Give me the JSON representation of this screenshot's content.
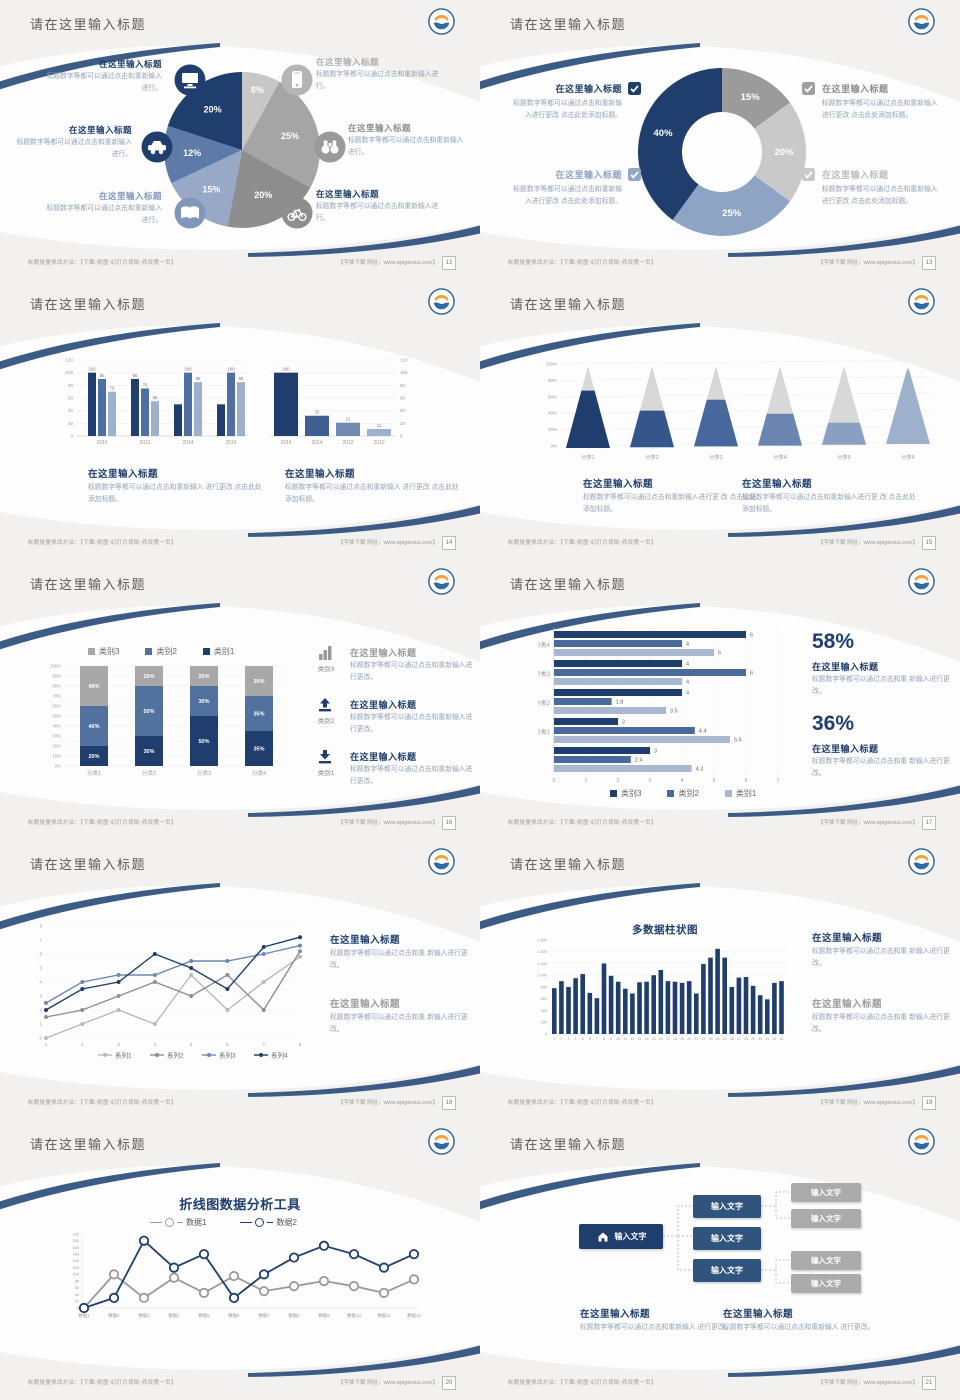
{
  "common": {
    "slide_title": "请在这里输入标题",
    "block_title": "在这里输入标题",
    "footer_left": "标题批量修改方法：【下载-视图-幻灯片母版-修改第一页】",
    "footer_right": "【字体下载 网址：www.pptgenius.com】",
    "colors": {
      "navy": "#1f3e6d",
      "mid_blue": "#41639b",
      "steel": "#51719f",
      "light_steel": "#9db0cc",
      "gray_dark": "#8e8e8e",
      "gray_mid": "#a5a5a5",
      "gray_light": "#c9c9c9",
      "body_text": "#93a2b5",
      "title_gray": "#5a5a5a",
      "stripe_blue": "#3d5c85"
    }
  },
  "slides": {
    "s12": {
      "page": "12",
      "chart_data": {
        "type": "pie",
        "values": [
          8,
          25,
          20,
          15,
          12,
          20
        ],
        "labels": [
          "8%",
          "25%",
          "20%",
          "15%",
          "12%",
          "20%"
        ],
        "colors": [
          "#c7c7c7",
          "#a5a5a5",
          "#8e8e8e",
          "#97a9c7",
          "#5d7aa8",
          "#1f3e6d"
        ]
      },
      "callouts": [
        {
          "title": "在这里输入标题",
          "body": "标题数字等都可以通过点击和重新输入进行。",
          "icon": "monitor",
          "icon_color": "#1f3e6d",
          "title_color": "#1f3e6d"
        },
        {
          "title": "在这里输入标题",
          "body": "标题数字等都可以通过点击和重新输入进行。",
          "icon": "car",
          "icon_color": "#1f3e6d",
          "title_color": "#1f3e6d"
        },
        {
          "title": "在这里输入标题",
          "body": "标题数字等都可以通过点击和重新输入进行。",
          "icon": "book",
          "icon_color": "#7f97bb",
          "title_color": "#7f97bb"
        },
        {
          "title": "在这里输入标题",
          "body": "标题数字等都可以通过点击和重新输入进行。",
          "icon": "phone",
          "icon_color": "#b5b5b5",
          "title_color": "#b0b0b0"
        },
        {
          "title": "在这里输入标题",
          "body": "标题数字等都可以通过点击和重新输入进行。",
          "icon": "binoculars",
          "icon_color": "#9a9a9a",
          "title_color": "#8c8c8c"
        },
        {
          "title": "在这里输入标题",
          "body": "标题数字等都可以通过点击和重新输入进行。",
          "icon": "bicycle",
          "icon_color": "#8e8e8e",
          "title_color": "#1f3e6d"
        }
      ]
    },
    "s13": {
      "page": "13",
      "chart_data": {
        "type": "pie",
        "subtype": "donut",
        "values": [
          15,
          20,
          25,
          40
        ],
        "labels": [
          "15%",
          "20%",
          "25%",
          "40%"
        ],
        "colors": [
          "#9b9b9b",
          "#c9c9c9",
          "#8ea4c4",
          "#1f3e6d"
        ]
      },
      "callouts": [
        {
          "title": "在这里输入标题",
          "body": "标题数字等都可以通过点击和重新输入进行更改 点击此处添加标题。",
          "box_color": "#1f3e6d",
          "title_color": "#1f3e6d"
        },
        {
          "title": "在这里输入标题",
          "body": "标题数字等都可以通过点击和重新输入进行更改 点击此处添加标题。",
          "box_color": "#92a7c6",
          "title_color": "#8ea4c4"
        },
        {
          "title": "在这里输入标题",
          "body": "标题数字等都可以通过点击和重新输入进行更改 点击此处添加标题。",
          "box_color": "#9e9e9e",
          "title_color": "#8c8c8c"
        },
        {
          "title": "在这里输入标题",
          "body": "标题数字等都可以通过点击和重新输入进行更改 点击此处添加标题。",
          "box_color": "#c9c9c9",
          "title_color": "#bdbdbd"
        }
      ]
    },
    "s14": {
      "page": "14",
      "chart_data": [
        {
          "type": "bar",
          "categories": [
            "2010",
            "2012",
            "2014",
            "2016"
          ],
          "series": [
            {
              "name": "s1",
              "values": [
                100,
                90,
                50,
                50
              ]
            },
            {
              "name": "s2",
              "values": [
                90,
                75,
                100,
                100
              ]
            },
            {
              "name": "s3",
              "values": [
                70,
                55,
                85,
                85
              ]
            }
          ],
          "ylim": [
            0,
            120
          ],
          "yticks": [
            0,
            20,
            40,
            60,
            80,
            100,
            120
          ],
          "colors": [
            "#1f3e6d",
            "#4f6fa3",
            "#9db0cc"
          ]
        },
        {
          "type": "bar",
          "categories": [
            "2016",
            "2014",
            "2012",
            "2010"
          ],
          "values": [
            100,
            32,
            21,
            11
          ],
          "ylim": [
            0,
            120
          ],
          "yticks": [
            0,
            20,
            40,
            60,
            80,
            100,
            120
          ],
          "colors": [
            "#1f3e6d",
            "#3f5f93",
            "#7289b2",
            "#9db0cc"
          ]
        }
      ],
      "blocks": [
        {
          "title": "在这里输入标题",
          "body": "标题数字等都可以通过点击和重新输入 进行更改 点击此处添加标题。"
        },
        {
          "title": "在这里输入标题",
          "body": "标题数字等都可以通过点击和重新输入 进行更改 点击此处添加标题。"
        }
      ]
    },
    "s15": {
      "page": "15",
      "chart_data": {
        "type": "bar",
        "subtype": "pyramid-cone",
        "categories": [
          "分类1",
          "分类2",
          "分类3",
          "分类4",
          "分类5",
          "分类6"
        ],
        "values_pct": [
          70,
          45,
          58,
          40,
          28,
          95
        ],
        "ylim": [
          0,
          100
        ],
        "yticks": [
          "0%",
          "20%",
          "40%",
          "60%",
          "80%",
          "100%"
        ],
        "colors": [
          "#1f3e6d",
          "#35568a",
          "#46689c",
          "#6a86b0",
          "#8aa0c2",
          "#9db0cc"
        ],
        "tip_color": "#d8d8d8"
      },
      "blocks": [
        {
          "title": "在这里输入标题",
          "body": "标题数字等都可以通过点击和重新输入进行更 改 点击此处添加标题。"
        },
        {
          "title": "在这里输入标题",
          "body": "标题数字等都可以通过点击和重新输入进行更 改 点击此处添加标题。"
        }
      ]
    },
    "s16": {
      "page": "16",
      "chart_data": {
        "type": "bar",
        "subtype": "stacked-100",
        "categories": [
          "分类1",
          "分类2",
          "分类3",
          "分类4"
        ],
        "series": [
          {
            "name": "类别1",
            "color": "#1f3e6d",
            "values": [
              20,
              30,
              50,
              35
            ]
          },
          {
            "name": "类别2",
            "color": "#51719f",
            "values": [
              40,
              50,
              30,
              35
            ]
          },
          {
            "name": "类别3",
            "color": "#a8a8a8",
            "values": [
              40,
              20,
              20,
              30
            ]
          }
        ],
        "yticks": [
          "0%",
          "10%",
          "20%",
          "30%",
          "40%",
          "50%",
          "60%",
          "70%",
          "80%",
          "90%",
          "100%"
        ],
        "legend": [
          "类别3",
          "类别2",
          "类别1"
        ]
      },
      "items": [
        {
          "icon": "bar-chart",
          "icon_label": "类别3",
          "icon_color": "#9a9a9a",
          "title": "在这里输入标题",
          "title_color": "#9a9a9a",
          "body": "标题数字等都可以通过点击和重新输入进行更改。"
        },
        {
          "icon": "upload",
          "icon_label": "类别2",
          "icon_color": "#1f3e6d",
          "title": "在这里输入标题",
          "title_color": "#1f3e6d",
          "body": "标题数字等都可以通过点击和重新输入进行更改。"
        },
        {
          "icon": "download",
          "icon_label": "类别1",
          "icon_color": "#1f3e6d",
          "title": "在这里输入标题",
          "title_color": "#1f3e6d",
          "body": "标题数字等都可以通过点击和重新输入进行更改。"
        }
      ]
    },
    "s17": {
      "page": "17",
      "chart_data": {
        "type": "bar",
        "subtype": "horizontal-grouped",
        "categories": [
          "分类4",
          "分类3",
          "分类2",
          "分类1",
          ""
        ],
        "series": [
          {
            "name": "类别3",
            "color": "#1f3e6d",
            "values": [
              6,
              4,
              4,
              2,
              3
            ]
          },
          {
            "name": "类别2",
            "color": "#4a6a9e",
            "values": [
              4,
              6,
              1.8,
              4.4,
              2.4
            ]
          },
          {
            "name": "类别1",
            "color": "#a9b8d0",
            "values": [
              5,
              4,
              3.5,
              5.5,
              4.3
            ]
          }
        ],
        "xlim": [
          0,
          7
        ],
        "xticks": [
          0,
          1,
          2,
          3,
          4,
          5,
          6,
          7
        ],
        "legend": [
          "类别3",
          "类别2",
          "类别1"
        ]
      },
      "stats": [
        {
          "value": "58%",
          "title": "在这里输入标题",
          "body": "标题数字等都可以通过点击和重 新输入进行更改。"
        },
        {
          "value": "36%",
          "title": "在这里输入标题",
          "body": "标题数字等都可以通过点击和重 新输入进行更改。"
        }
      ]
    },
    "s18": {
      "page": "18",
      "chart_data": {
        "type": "line",
        "x": [
          1,
          2,
          3,
          4,
          5,
          6,
          7,
          8
        ],
        "ylim": [
          0,
          8
        ],
        "series": [
          {
            "name": "系列1",
            "color": "#b9b9b9",
            "values": [
              0,
              1,
              2,
              1,
              4.5,
              2,
              4,
              5.8
            ]
          },
          {
            "name": "系列2",
            "color": "#8f8f8f",
            "values": [
              1.5,
              2,
              3,
              4,
              3,
              4.5,
              2,
              6.2
            ]
          },
          {
            "name": "系列3",
            "color": "#6f88b0",
            "values": [
              2.5,
              4,
              4.5,
              4.5,
              5.5,
              5.5,
              6,
              6.6
            ]
          },
          {
            "name": "系列4",
            "color": "#1f3e6d",
            "values": [
              2,
              3.5,
              4,
              6,
              5,
              3.5,
              6.5,
              7.2
            ]
          }
        ],
        "legend": [
          "系列1",
          "系列2",
          "系列3",
          "系列4"
        ]
      },
      "blocks": [
        {
          "title": "在这里输入标题",
          "title_color": "#1f3e6d",
          "body": "标题数字等都可以通过点击和重 新输入进行更改。"
        },
        {
          "title": "在这里输入标题",
          "title_color": "#9b9b9b",
          "body": "标题数字等都可以通过点击和重 新输入进行更改。"
        }
      ]
    },
    "s19": {
      "page": "19",
      "chart_title": "多数据柱状图",
      "chart_data": {
        "type": "bar",
        "categories": [
          "1",
          "2",
          "3",
          "4",
          "5",
          "6",
          "7",
          "8",
          "9",
          "10",
          "11",
          "12",
          "13",
          "14",
          "15",
          "16",
          "17",
          "18",
          "19",
          "20",
          "21",
          "22",
          "23",
          "24",
          "25",
          "26",
          "27",
          "28",
          "29",
          "30",
          "31",
          "32",
          "33"
        ],
        "values": [
          780,
          900,
          800,
          950,
          1020,
          700,
          610,
          1200,
          990,
          890,
          770,
          690,
          880,
          890,
          1000,
          1090,
          900,
          890,
          870,
          900,
          690,
          1190,
          1300,
          1450,
          1300,
          800,
          960,
          970,
          820,
          660,
          590,
          870,
          900
        ],
        "ylim": [
          0,
          1600
        ],
        "yticks": [
          "0",
          "200",
          "400",
          "600",
          "800",
          "1,000",
          "1,200",
          "1,400",
          "1,600"
        ],
        "color": "#1f3e6d",
        "title": "多数据柱状图"
      },
      "blocks": [
        {
          "title": "在这里输入标题",
          "title_color": "#1f3e6d",
          "body": "标题数字等都可以通过点击和重 新输入进行更改。"
        },
        {
          "title": "在这里输入标题",
          "title_color": "#9b9b9b",
          "body": "标题数字等都可以通过点击和重 新输入进行更改。"
        }
      ]
    },
    "s20": {
      "page": "20",
      "chart_title": "折线图数据分析工具",
      "chart_data": {
        "type": "line",
        "title": "折线图数据分析工具",
        "categories": [
          "数据1",
          "数据2",
          "数据3",
          "数据4",
          "数据5",
          "数据6",
          "数据7",
          "数据8",
          "数据9",
          "数据10",
          "数据11",
          "数据12"
        ],
        "ylim": [
          0,
          220
        ],
        "yticks": [
          0,
          20,
          40,
          60,
          80,
          100,
          120,
          140,
          160,
          180,
          200,
          220
        ],
        "series": [
          {
            "name": "数据1",
            "color": "#9a9a9a",
            "values": [
              0,
              100,
              30,
              90,
              45,
              95,
              50,
              65,
              80,
              65,
              45,
              85
            ]
          },
          {
            "name": "数据2",
            "color": "#1f3e6d",
            "values": [
              0,
              30,
              200,
              120,
              160,
              30,
              100,
              150,
              185,
              160,
              120,
              160
            ]
          }
        ],
        "legend": [
          "数据1",
          "数据2"
        ]
      }
    },
    "s21": {
      "page": "21",
      "diagram": {
        "root_label": "输入文字",
        "mid_labels": [
          "输入文字",
          "输入文字",
          "输入文字"
        ],
        "leaf_labels": [
          "输入文字",
          "输入文字",
          "输入文字",
          "输入文字"
        ],
        "root_color": "#1f3e6d",
        "mid_color": "#31547f",
        "leaf_color": "#ababab"
      },
      "blocks": [
        {
          "title": "在这里输入标题",
          "body": "标题数字等都可以通过点击和重新输入 进行更改。"
        },
        {
          "title": "在这里输入标题",
          "body": "标题数字等都可以通过点击和重新输入 进行更改。"
        }
      ]
    }
  }
}
